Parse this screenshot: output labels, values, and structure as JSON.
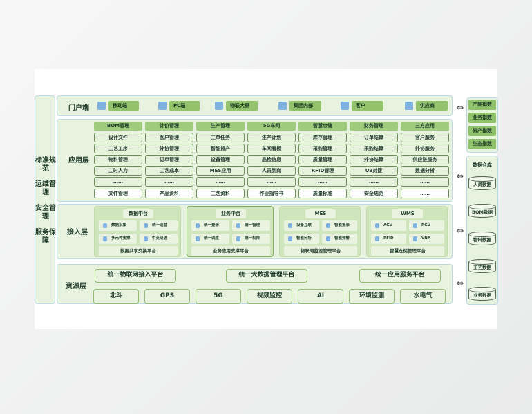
{
  "left_column": [
    "标准规范",
    "运维管理",
    "安全管理",
    "服务保障"
  ],
  "portal": {
    "label": "门户端",
    "items": [
      {
        "label": "移动端",
        "icon": "mobile-icon"
      },
      {
        "label": "PC端",
        "icon": "monitor-icon"
      },
      {
        "label": "物联大屏",
        "icon": "screen-icon"
      },
      {
        "label": "集团内部",
        "icon": "building-icon"
      },
      {
        "label": "客户",
        "icon": "user-icon"
      },
      {
        "label": "供应商",
        "icon": "supplier-icon"
      }
    ]
  },
  "application": {
    "label": "应用层",
    "columns": [
      {
        "header": "BOM管理",
        "items": [
          "设计文件",
          "工艺工序",
          "物料管理",
          "工时人力",
          "……",
          "文件管理"
        ]
      },
      {
        "header": "计价管理",
        "items": [
          "客户管理",
          "外协管理",
          "订单管理",
          "工艺成本",
          "……",
          "产品资料"
        ]
      },
      {
        "header": "生产管理",
        "items": [
          "工单任务",
          "智能排产",
          "设备管理",
          "MES应用",
          "……",
          "工艺资料"
        ]
      },
      {
        "header": "5G车间",
        "items": [
          "生产计划",
          "车间看板",
          "品检信息",
          "人员到岗",
          "……",
          "作业指导书"
        ]
      },
      {
        "header": "智慧仓储",
        "items": [
          "库存管理",
          "采购管理",
          "质量管理",
          "RFID管理",
          "……",
          "质量标准"
        ]
      },
      {
        "header": "财务管理",
        "items": [
          "订单结算",
          "采购结算",
          "外协结算",
          "U9对接",
          "……",
          "安全规范"
        ]
      },
      {
        "header": "三方应用",
        "items": [
          "客户服务",
          "外协服务",
          "供应链服务",
          "数据分析",
          "……",
          "……"
        ]
      }
    ]
  },
  "access": {
    "label": "接入层",
    "blocks": [
      {
        "title": "数据中台",
        "items": [
          "数据采集",
          "统一运营",
          "多元种支撑",
          "中英双语"
        ],
        "footer": "数据共享交换平台"
      },
      {
        "title": "业务中台",
        "items": [
          "统一登录",
          "统一管理",
          "统一调度",
          "统一权限"
        ],
        "footer": "业务应用支撑平台"
      },
      {
        "title": "MES",
        "items": [
          "设备互联",
          "智能报表",
          "智能分析",
          "智能预警"
        ],
        "footer": "物联网监控管理平台"
      },
      {
        "title": "WMS",
        "items": [
          "AGV",
          "RGV",
          "RFID",
          "VNA"
        ],
        "footer": "智慧仓储管理平台"
      }
    ]
  },
  "resource": {
    "label": "资源层",
    "platforms": [
      "统一物联网接入平台",
      "统一大数据管理平台",
      "统一应用服务平台"
    ],
    "items": [
      "北斗",
      "GPS",
      "5G",
      "视频监控",
      "AI",
      "环境监测",
      "水电气"
    ]
  },
  "indices": [
    "产能指数",
    "业务指数",
    "资产指数",
    "生态指数"
  ],
  "warehouse": {
    "title": "数据仓库",
    "items": [
      "人员数据",
      "BOM数据",
      "物料数据",
      "工艺数据",
      "业务数据"
    ]
  },
  "arrow_icon": "double-arrow-icon",
  "colors": {
    "green": "#93c26c",
    "panel": "#e8f3df",
    "border": "#b9d9e6"
  }
}
